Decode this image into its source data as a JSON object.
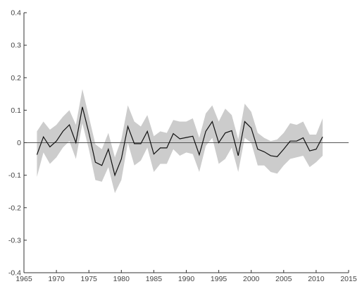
{
  "chart_data": {
    "type": "line",
    "title": "",
    "xlabel": "",
    "ylabel": "",
    "xlim": [
      1965,
      2015
    ],
    "ylim": [
      -0.4,
      0.4
    ],
    "x_ticks": [
      1965,
      1970,
      1975,
      1980,
      1985,
      1990,
      1995,
      2000,
      2005,
      2010,
      2015
    ],
    "y_ticks": [
      -0.4,
      -0.3,
      -0.2,
      -0.1,
      0,
      0.1,
      0.2,
      0.3,
      0.4
    ],
    "x_tick_labels": [
      "1965",
      "1970",
      "1975",
      "1980",
      "1985",
      "1990",
      "1995",
      "2000",
      "2005",
      "2010",
      "2015"
    ],
    "y_tick_labels": [
      "-0.4",
      "-0.3",
      "-0.2",
      "-0.1",
      "0",
      "0.1",
      "0.2",
      "0.3",
      "0.4"
    ],
    "zero_line": 0,
    "grid": false,
    "colors": {
      "line": "#111111",
      "band": "#cccccc",
      "axis": "#333333",
      "zero_line": "#555555"
    },
    "series": [
      {
        "x": [
          1967,
          1968,
          1969,
          1970,
          1971,
          1972,
          1973,
          1974,
          1975,
          1976,
          1977,
          1978,
          1979,
          1980,
          1981,
          1982,
          1983,
          1984,
          1985,
          1986,
          1987,
          1988,
          1989,
          1990,
          1991,
          1992,
          1993,
          1994,
          1995,
          1996,
          1997,
          1998,
          1999,
          2000,
          2001,
          2002,
          2003,
          2004,
          2005,
          2006,
          2007,
          2008,
          2009,
          2010,
          2011
        ],
        "y": [
          -0.037,
          0.018,
          -0.013,
          0.005,
          0.035,
          0.055,
          0.0,
          0.11,
          0.03,
          -0.06,
          -0.07,
          -0.02,
          -0.1,
          -0.05,
          0.05,
          -0.003,
          -0.003,
          0.035,
          -0.035,
          -0.016,
          -0.016,
          0.028,
          0.012,
          0.016,
          0.02,
          -0.037,
          0.035,
          0.065,
          0.0,
          0.03,
          0.037,
          -0.04,
          0.065,
          0.045,
          -0.02,
          -0.028,
          -0.04,
          -0.043,
          -0.02,
          0.005,
          0.005,
          0.015,
          -0.025,
          -0.02,
          0.018
        ],
        "lower": [
          -0.105,
          -0.03,
          -0.065,
          -0.045,
          -0.015,
          0.005,
          -0.05,
          0.06,
          -0.02,
          -0.115,
          -0.12,
          -0.075,
          -0.155,
          -0.115,
          0.0,
          -0.07,
          -0.055,
          -0.015,
          -0.09,
          -0.065,
          -0.065,
          -0.02,
          -0.04,
          -0.03,
          -0.035,
          -0.09,
          -0.01,
          0.015,
          -0.065,
          -0.05,
          -0.015,
          -0.09,
          0.015,
          0.0,
          -0.07,
          -0.07,
          -0.09,
          -0.095,
          -0.07,
          -0.05,
          -0.045,
          -0.04,
          -0.075,
          -0.06,
          -0.04
        ],
        "upper": [
          0.035,
          0.065,
          0.04,
          0.055,
          0.08,
          0.1,
          0.055,
          0.165,
          0.08,
          -0.005,
          -0.02,
          0.03,
          -0.045,
          0.01,
          0.115,
          0.065,
          0.05,
          0.085,
          0.02,
          0.035,
          0.03,
          0.07,
          0.065,
          0.065,
          0.075,
          0.015,
          0.09,
          0.115,
          0.065,
          0.105,
          0.085,
          0.01,
          0.12,
          0.095,
          0.03,
          0.015,
          0.005,
          0.01,
          0.03,
          0.06,
          0.055,
          0.065,
          0.025,
          0.025,
          0.075
        ]
      }
    ]
  }
}
